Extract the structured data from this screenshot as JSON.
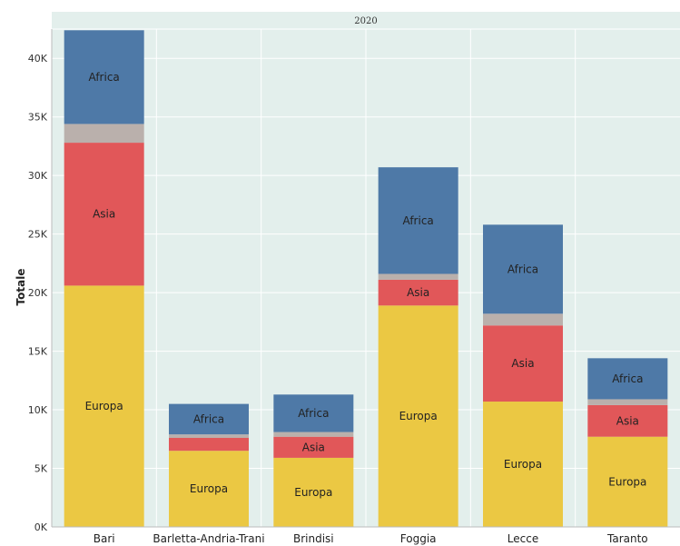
{
  "chart_data": {
    "type": "bar",
    "stacked": true,
    "panel_title": "2020",
    "ylabel": "Totale",
    "xlabel": "",
    "ylim": [
      0,
      42500
    ],
    "yticks": [
      0,
      5000,
      10000,
      15000,
      20000,
      25000,
      30000,
      35000,
      40000
    ],
    "ytick_labels": [
      "0K",
      "5K",
      "10K",
      "15K",
      "20K",
      "25K",
      "30K",
      "35K",
      "40K"
    ],
    "categories": [
      "Bari",
      "Barletta-Andria-Trani",
      "Brindisi",
      "Foggia",
      "Lecce",
      "Taranto"
    ],
    "series": [
      {
        "name": "Europa",
        "color": "#EBC843",
        "values": [
          20600,
          6500,
          5900,
          18900,
          10700,
          7700
        ],
        "show_labels": true
      },
      {
        "name": "Asia",
        "color": "#E15759",
        "values": [
          12200,
          1100,
          1800,
          2200,
          6500,
          2700
        ],
        "show_labels": true
      },
      {
        "name": "",
        "color": "#BAB0AC",
        "values": [
          1600,
          300,
          400,
          500,
          1000,
          500
        ],
        "show_labels": false
      },
      {
        "name": "Africa",
        "color": "#4E79A7",
        "values": [
          8000,
          2600,
          3200,
          9100,
          7600,
          3500
        ],
        "show_labels": true
      }
    ],
    "segment_labels_hidden": [
      [],
      [
        "Asia"
      ],
      [],
      [],
      [],
      []
    ],
    "grid": true,
    "background": "#E3EFEC",
    "legend": "none"
  }
}
